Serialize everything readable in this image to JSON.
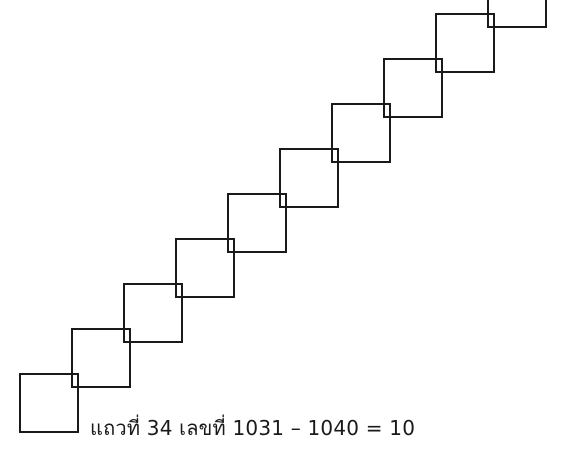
{
  "caption": {
    "text": "แถวที่  34  เลขที่  1031 – 1040 = 10"
  },
  "diagram": {
    "shape": "square",
    "square_count": 10,
    "arrangement": "diagonal staircase, bottom-left to top-right",
    "stroke_color": "#1a1a1a",
    "background_color": "#ffffff"
  }
}
